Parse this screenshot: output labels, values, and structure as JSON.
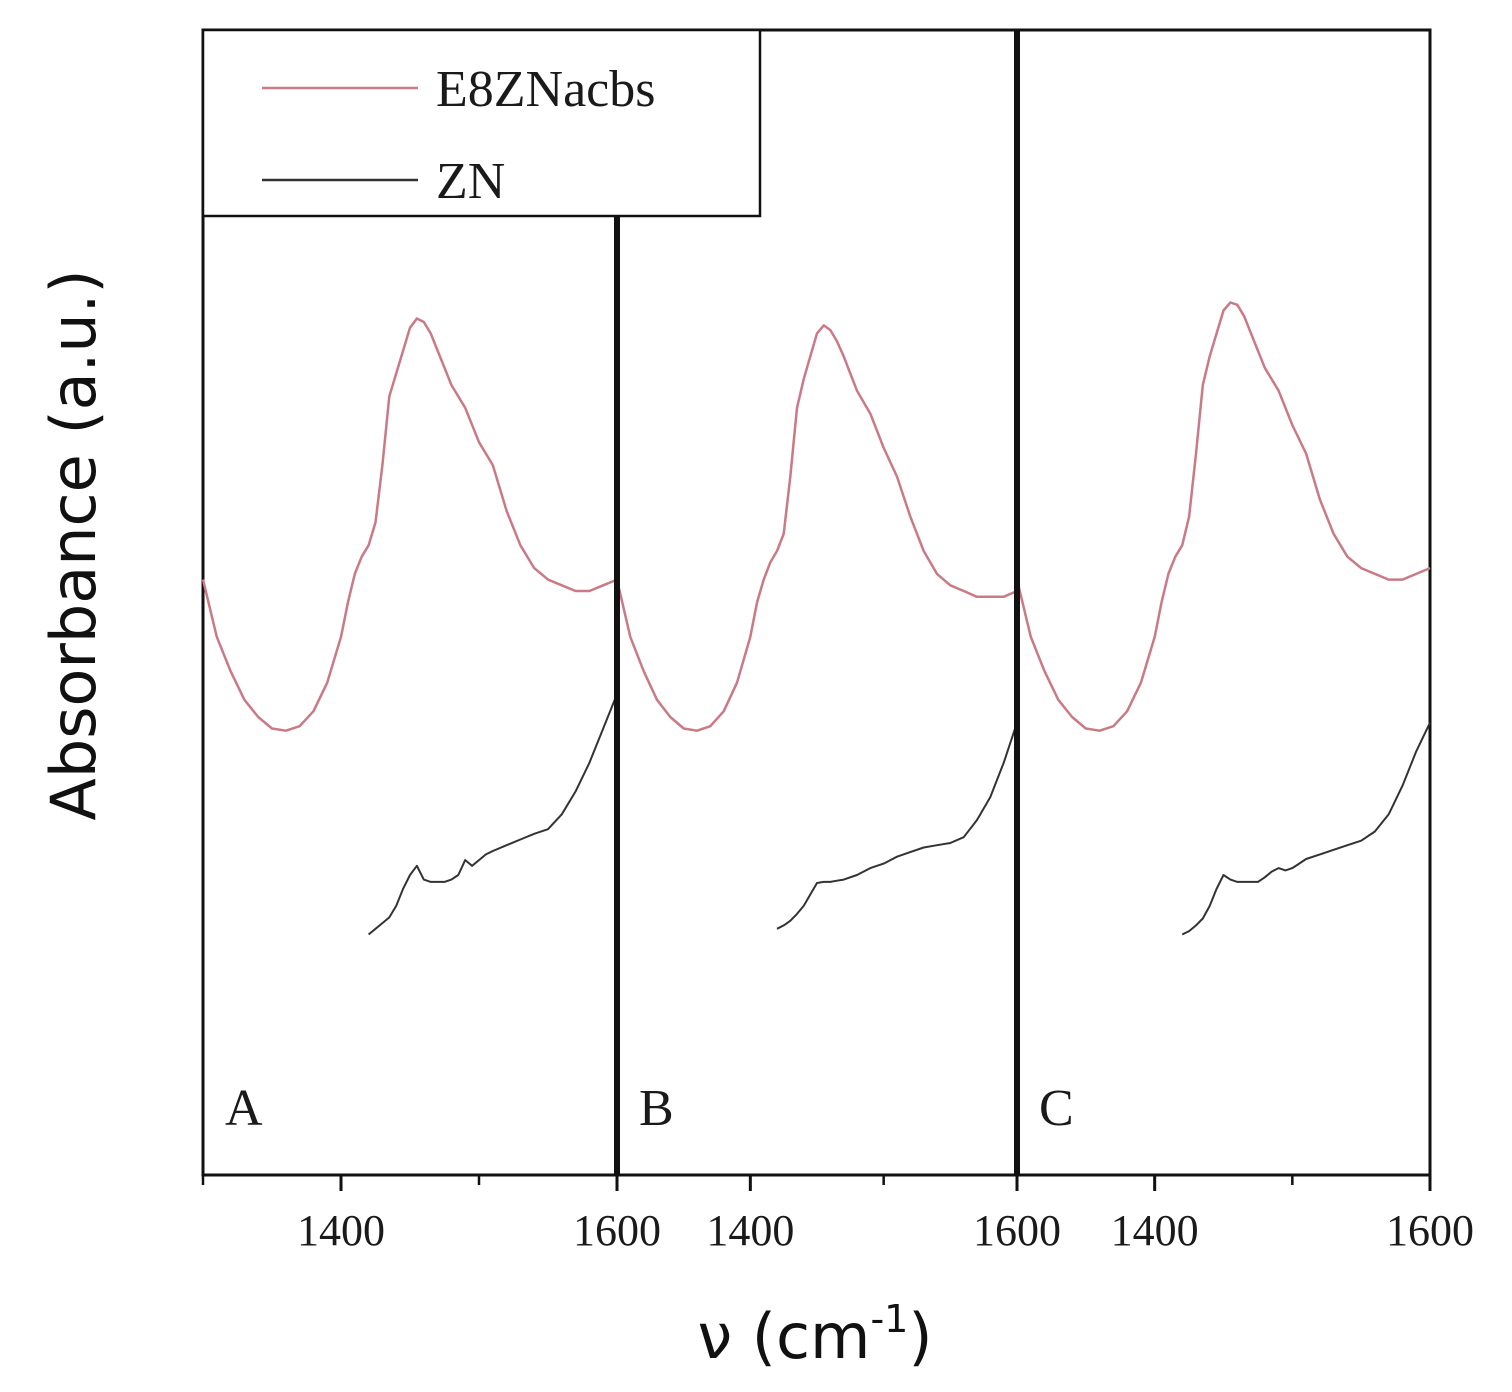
{
  "chart_data": {
    "type": "line",
    "ylabel": "Absorbance (a.u.)",
    "xlabel": {
      "main": "ν (cm",
      "sup": "-1",
      "close": ")"
    },
    "xlim": [
      1300,
      1600
    ],
    "ylim": [
      0,
      1
    ],
    "x_major_ticks": [
      1400,
      1600
    ],
    "x_minor_ticks": [
      1300,
      1500
    ],
    "x_tick_labels": [
      "1400",
      "1600"
    ],
    "legend": {
      "position": "top-left",
      "entries": [
        {
          "name": "E8ZNacbs",
          "color": "#c97a86"
        },
        {
          "name": "ZN",
          "color": "#333333"
        }
      ]
    },
    "series_colors": {
      "E8ZNacbs": "#c97a86",
      "ZN": "#333333"
    },
    "panels": [
      {
        "label": "A",
        "series": [
          {
            "name": "E8ZNacbs",
            "x": [
              1300,
              1310,
              1320,
              1330,
              1340,
              1350,
              1360,
              1370,
              1380,
              1390,
              1400,
              1405,
              1410,
              1415,
              1420,
              1425,
              1430,
              1435,
              1440,
              1445,
              1450,
              1455,
              1460,
              1465,
              1470,
              1475,
              1480,
              1490,
              1500,
              1510,
              1520,
              1530,
              1540,
              1550,
              1560,
              1570,
              1580,
              1590,
              1600
            ],
            "y": [
              0.52,
              0.47,
              0.44,
              0.415,
              0.4,
              0.39,
              0.388,
              0.392,
              0.405,
              0.43,
              0.47,
              0.5,
              0.525,
              0.54,
              0.55,
              0.57,
              0.62,
              0.68,
              0.7,
              0.72,
              0.74,
              0.748,
              0.745,
              0.735,
              0.72,
              0.705,
              0.69,
              0.67,
              0.64,
              0.62,
              0.58,
              0.55,
              0.53,
              0.52,
              0.515,
              0.51,
              0.51,
              0.515,
              0.52
            ]
          },
          {
            "name": "ZN",
            "x": [
              1420,
              1425,
              1430,
              1435,
              1440,
              1445,
              1450,
              1455,
              1460,
              1465,
              1470,
              1475,
              1480,
              1485,
              1490,
              1495,
              1500,
              1505,
              1510,
              1520,
              1530,
              1540,
              1550,
              1560,
              1570,
              1580,
              1590,
              1600
            ],
            "y": [
              0.21,
              0.215,
              0.22,
              0.225,
              0.235,
              0.25,
              0.262,
              0.27,
              0.258,
              0.256,
              0.256,
              0.256,
              0.258,
              0.262,
              0.275,
              0.27,
              0.275,
              0.28,
              0.283,
              0.288,
              0.293,
              0.298,
              0.302,
              0.315,
              0.335,
              0.36,
              0.39,
              0.42
            ]
          }
        ]
      },
      {
        "label": "B",
        "series": [
          {
            "name": "E8ZNacbs",
            "x": [
              1300,
              1310,
              1320,
              1330,
              1340,
              1350,
              1360,
              1370,
              1380,
              1390,
              1400,
              1405,
              1410,
              1415,
              1420,
              1425,
              1430,
              1435,
              1440,
              1445,
              1450,
              1455,
              1460,
              1465,
              1470,
              1475,
              1480,
              1490,
              1500,
              1510,
              1520,
              1530,
              1540,
              1550,
              1560,
              1570,
              1580,
              1590,
              1600
            ],
            "y": [
              0.52,
              0.47,
              0.44,
              0.415,
              0.4,
              0.39,
              0.388,
              0.392,
              0.405,
              0.43,
              0.47,
              0.5,
              0.52,
              0.535,
              0.545,
              0.56,
              0.61,
              0.67,
              0.695,
              0.715,
              0.735,
              0.742,
              0.738,
              0.728,
              0.715,
              0.7,
              0.685,
              0.665,
              0.635,
              0.61,
              0.575,
              0.545,
              0.525,
              0.515,
              0.51,
              0.505,
              0.505,
              0.505,
              0.51
            ]
          },
          {
            "name": "ZN",
            "x": [
              1420,
              1425,
              1430,
              1435,
              1440,
              1445,
              1450,
              1455,
              1460,
              1465,
              1470,
              1480,
              1490,
              1500,
              1510,
              1520,
              1530,
              1540,
              1550,
              1560,
              1570,
              1580,
              1590,
              1600
            ],
            "y": [
              0.215,
              0.218,
              0.222,
              0.228,
              0.235,
              0.245,
              0.255,
              0.256,
              0.256,
              0.257,
              0.258,
              0.262,
              0.268,
              0.272,
              0.278,
              0.282,
              0.286,
              0.288,
              0.29,
              0.295,
              0.31,
              0.33,
              0.36,
              0.395
            ]
          }
        ]
      },
      {
        "label": "C",
        "series": [
          {
            "name": "E8ZNacbs",
            "x": [
              1300,
              1310,
              1320,
              1330,
              1340,
              1350,
              1360,
              1370,
              1380,
              1390,
              1400,
              1405,
              1410,
              1415,
              1420,
              1425,
              1430,
              1435,
              1440,
              1445,
              1450,
              1455,
              1460,
              1465,
              1470,
              1475,
              1480,
              1490,
              1500,
              1510,
              1520,
              1530,
              1540,
              1550,
              1560,
              1570,
              1580,
              1590,
              1600
            ],
            "y": [
              0.52,
              0.47,
              0.44,
              0.415,
              0.4,
              0.39,
              0.388,
              0.392,
              0.405,
              0.43,
              0.47,
              0.5,
              0.525,
              0.54,
              0.55,
              0.575,
              0.63,
              0.69,
              0.715,
              0.735,
              0.755,
              0.762,
              0.76,
              0.75,
              0.735,
              0.72,
              0.705,
              0.685,
              0.655,
              0.63,
              0.59,
              0.56,
              0.54,
              0.53,
              0.525,
              0.52,
              0.52,
              0.525,
              0.53
            ]
          },
          {
            "name": "ZN",
            "x": [
              1420,
              1425,
              1430,
              1435,
              1440,
              1445,
              1450,
              1455,
              1460,
              1465,
              1470,
              1475,
              1480,
              1485,
              1490,
              1495,
              1500,
              1505,
              1510,
              1520,
              1530,
              1540,
              1550,
              1560,
              1570,
              1580,
              1590,
              1600
            ],
            "y": [
              0.21,
              0.213,
              0.218,
              0.224,
              0.235,
              0.25,
              0.262,
              0.258,
              0.256,
              0.256,
              0.256,
              0.256,
              0.26,
              0.265,
              0.268,
              0.266,
              0.268,
              0.272,
              0.276,
              0.28,
              0.284,
              0.288,
              0.292,
              0.3,
              0.315,
              0.34,
              0.37,
              0.395
            ]
          }
        ]
      }
    ]
  }
}
